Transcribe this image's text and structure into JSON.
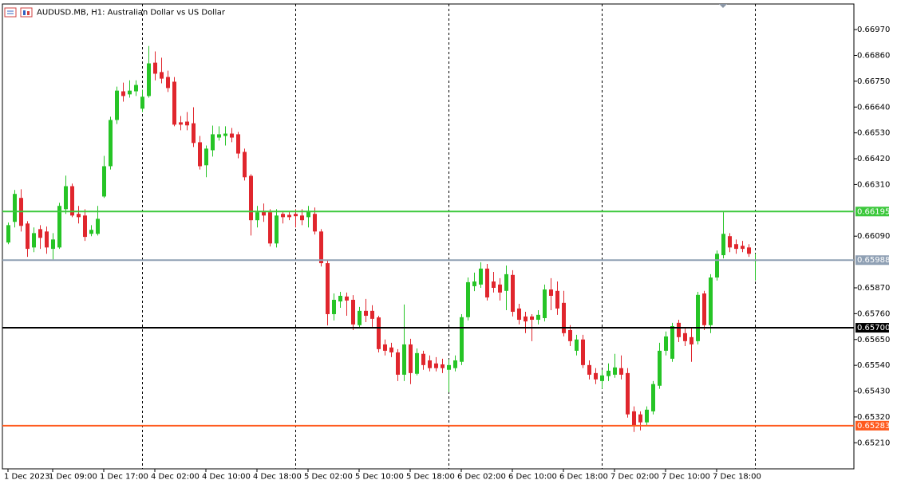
{
  "chart_data": {
    "type": "candlestick",
    "title": "AUDUSD.MB, H1:  Australian Dollar vs US Dollar",
    "categories": [
      "1 Dec 2023",
      null,
      null,
      null,
      null,
      null,
      null,
      "1 Dec 09:00",
      null,
      null,
      null,
      null,
      null,
      null,
      null,
      "1 Dec 17:00",
      null,
      null,
      null,
      null,
      null,
      null,
      null,
      "4 Dec 02:00",
      null,
      null,
      null,
      null,
      null,
      null,
      null,
      "4 Dec 10:00",
      null,
      null,
      null,
      null,
      null,
      null,
      null,
      "4 Dec 18:00",
      null,
      null,
      null,
      null,
      null,
      null,
      null,
      "5 Dec 02:00",
      null,
      null,
      null,
      null,
      null,
      null,
      null,
      "5 Dec 10:00",
      null,
      null,
      null,
      null,
      null,
      null,
      null,
      "5 Dec 18:00",
      null,
      null,
      null,
      null,
      null,
      null,
      null,
      "6 Dec 02:00",
      null,
      null,
      null,
      null,
      null,
      null,
      null,
      "6 Dec 10:00",
      null,
      null,
      null,
      null,
      null,
      null,
      null,
      "6 Dec 18:00",
      null,
      null,
      null,
      null,
      null,
      null,
      null,
      "7 Dec 02:00",
      null,
      null,
      null,
      null,
      null,
      null,
      null,
      "7 Dec 10:00",
      null,
      null,
      null,
      null,
      null,
      null,
      null,
      "7 Dec 18:00",
      null,
      null,
      null,
      null,
      null,
      null
    ],
    "open": [
      0.66063,
      0.66151,
      0.66253,
      0.66144,
      0.66042,
      0.6612,
      0.6611,
      0.66036,
      0.66042,
      0.66205,
      0.66303,
      0.66185,
      0.66178,
      0.661,
      0.661,
      0.66259,
      0.66388,
      0.66585,
      0.66707,
      0.66694,
      0.66707,
      0.66633,
      0.66687,
      0.66829,
      0.66789,
      0.66768,
      0.66748,
      0.66575,
      0.66578,
      0.66571,
      0.6649,
      0.66392,
      0.66456,
      0.6651,
      0.66517,
      0.66527,
      0.66524,
      0.66449,
      0.66347,
      0.66158,
      0.66198,
      0.66192,
      0.66059,
      0.66185,
      0.66181,
      0.66185,
      0.66178,
      0.66171,
      0.66185,
      0.6611,
      0.65975,
      0.65758,
      0.65812,
      0.65833,
      0.65819,
      0.65711,
      0.65772,
      0.65772,
      0.65744,
      0.65629,
      0.65616,
      0.65595,
      0.655,
      0.65629,
      0.65504,
      0.65589,
      0.65561,
      0.65548,
      0.65544,
      0.65521,
      0.65528,
      0.65555,
      0.65745,
      0.65877,
      0.65884,
      0.65952,
      0.65897,
      0.65884,
      0.65857,
      0.65925,
      0.65782,
      0.65748,
      0.65748,
      0.65734,
      0.65741,
      0.65863,
      0.65857,
      0.65806,
      0.6569,
      0.65602,
      0.6565,
      0.65541,
      0.65507,
      0.65473,
      0.65494,
      0.655,
      0.65528,
      0.65507,
      0.65344,
      0.65331,
      0.65297,
      0.65344,
      0.65453,
      0.65602,
      0.65568,
      0.65721,
      0.65677,
      0.6566,
      0.65643,
      0.65846,
      0.65711,
      0.65914,
      0.66009,
      0.6609,
      0.66056,
      0.66049,
      0.66042,
      0.65985
    ],
    "high": [
      0.66148,
      0.66287,
      0.6629,
      0.66154,
      0.66127,
      0.66137,
      0.66131,
      0.66103,
      0.66232,
      0.66348,
      0.66314,
      0.66219,
      0.66205,
      0.66137,
      0.66219,
      0.66432,
      0.66599,
      0.66727,
      0.66744,
      0.66754,
      0.66754,
      0.66714,
      0.669,
      0.66877,
      0.6685,
      0.66795,
      0.66768,
      0.66602,
      0.66619,
      0.66639,
      0.66517,
      0.66476,
      0.66561,
      0.66558,
      0.66558,
      0.66551,
      0.66534,
      0.66463,
      0.66354,
      0.66219,
      0.66229,
      0.66205,
      0.66205,
      0.66198,
      0.66195,
      0.66205,
      0.66205,
      0.66219,
      0.66212,
      0.6612,
      0.65988,
      0.65846,
      0.65853,
      0.6585,
      0.65839,
      0.65789,
      0.65823,
      0.65796,
      0.65751,
      0.6565,
      0.65636,
      0.65609,
      0.65799,
      0.65653,
      0.65612,
      0.65602,
      0.65582,
      0.65575,
      0.65568,
      0.65565,
      0.65582,
      0.65758,
      0.65914,
      0.65935,
      0.65979,
      0.65972,
      0.65938,
      0.65911,
      0.65965,
      0.65945,
      0.65802,
      0.65768,
      0.65758,
      0.65775,
      0.65884,
      0.65911,
      0.65897,
      0.65857,
      0.65711,
      0.6567,
      0.6567,
      0.65561,
      0.65528,
      0.65521,
      0.65548,
      0.65589,
      0.65582,
      0.65528,
      0.65365,
      0.65344,
      0.65365,
      0.65473,
      0.65636,
      0.65684,
      0.65721,
      0.65734,
      0.65697,
      0.65697,
      0.65853,
      0.65857,
      0.65928,
      0.66029,
      0.66192,
      0.66103,
      0.66076,
      0.6607,
      0.66056,
      0.66015
    ],
    "low": [
      0.66056,
      0.66127,
      0.6611,
      0.66002,
      0.66022,
      0.66036,
      0.66015,
      0.65991,
      0.66036,
      0.66185,
      0.66171,
      0.66144,
      0.6607,
      0.6609,
      0.66093,
      0.66253,
      0.66374,
      0.66568,
      0.66663,
      0.6668,
      0.66687,
      0.66619,
      0.6668,
      0.66754,
      0.66741,
      0.66704,
      0.66558,
      0.66541,
      0.66541,
      0.6647,
      0.66374,
      0.66341,
      0.66429,
      0.66497,
      0.66476,
      0.6649,
      0.66422,
      0.66327,
      0.66093,
      0.66127,
      0.66151,
      0.66046,
      0.66042,
      0.66144,
      0.66158,
      0.66127,
      0.66137,
      0.66127,
      0.66097,
      0.65961,
      0.6571,
      0.65731,
      0.65785,
      0.65751,
      0.6569,
      0.65697,
      0.65724,
      0.65704,
      0.65595,
      0.65582,
      0.65575,
      0.65473,
      0.65473,
      0.6546,
      0.65497,
      0.65521,
      0.65514,
      0.65514,
      0.65507,
      0.65426,
      0.65514,
      0.65541,
      0.65731,
      0.65856,
      0.6587,
      0.65816,
      0.6585,
      0.65816,
      0.65775,
      0.65748,
      0.65714,
      0.65677,
      0.65643,
      0.65714,
      0.65727,
      0.65775,
      0.65755,
      0.65663,
      0.65622,
      0.65582,
      0.65528,
      0.6548,
      0.6546,
      0.6544,
      0.65473,
      0.65487,
      0.6548,
      0.65317,
      0.65256,
      0.65263,
      0.65283,
      0.65331,
      0.6544,
      0.65582,
      0.65555,
      0.65639,
      0.65622,
      0.65555,
      0.65629,
      0.6569,
      0.65677,
      0.65901,
      0.65995,
      0.66022,
      0.66015,
      0.66022,
      0.66002,
      0.65901
    ],
    "close": [
      0.66137,
      0.6627,
      0.66134,
      0.66036,
      0.66103,
      0.66083,
      0.66042,
      0.66076,
      0.66219,
      0.66303,
      0.66178,
      0.66171,
      0.66087,
      0.66117,
      0.66164,
      0.66388,
      0.66585,
      0.6671,
      0.66687,
      0.6671,
      0.66734,
      0.66684,
      0.66826,
      0.66782,
      0.66761,
      0.66721,
      0.66565,
      0.66565,
      0.66562,
      0.66487,
      0.66388,
      0.66463,
      0.66524,
      0.66524,
      0.66527,
      0.6651,
      0.66442,
      0.66341,
      0.66158,
      0.66192,
      0.66178,
      0.66059,
      0.66178,
      0.66171,
      0.66171,
      0.66175,
      0.66158,
      0.66198,
      0.6611,
      0.65975,
      0.65758,
      0.65819,
      0.65836,
      0.65816,
      0.65714,
      0.65772,
      0.65751,
      0.65738,
      0.65609,
      0.65602,
      0.65595,
      0.655,
      0.65629,
      0.65507,
      0.65592,
      0.65541,
      0.65528,
      0.65528,
      0.65528,
      0.65541,
      0.65561,
      0.65745,
      0.65894,
      0.65897,
      0.65952,
      0.65829,
      0.6587,
      0.6585,
      0.65928,
      0.65768,
      0.65734,
      0.65727,
      0.65734,
      0.65755,
      0.65863,
      0.65836,
      0.65782,
      0.65677,
      0.65643,
      0.6565,
      0.65541,
      0.655,
      0.6548,
      0.65497,
      0.65517,
      0.65531,
      0.655,
      0.65331,
      0.65283,
      0.65297,
      0.65351,
      0.6546,
      0.65602,
      0.65663,
      0.65707,
      0.6566,
      0.65643,
      0.65629,
      0.6584,
      0.65711,
      0.65914,
      0.66015,
      0.661,
      0.66042,
      0.66036,
      0.66036,
      0.66015,
      0.65988
    ],
    "up_color": "#26c426",
    "down_color": "#e0262d",
    "ylim": [
      0.65099,
      0.67079
    ],
    "yticks": [
      {
        "value": 0.6697,
        "label": "0.66970"
      },
      {
        "value": 0.6686,
        "label": "0.66860"
      },
      {
        "value": 0.6675,
        "label": "0.66750"
      },
      {
        "value": 0.6664,
        "label": "0.66640"
      },
      {
        "value": 0.6653,
        "label": "0.66530"
      },
      {
        "value": 0.6642,
        "label": "0.66420"
      },
      {
        "value": 0.6631,
        "label": "0.66310"
      },
      {
        "value": 0.6609,
        "label": "0.66090"
      },
      {
        "value": 0.6587,
        "label": "0.65870"
      },
      {
        "value": 0.6576,
        "label": "0.65760"
      },
      {
        "value": 0.6565,
        "label": "0.65650"
      },
      {
        "value": 0.6554,
        "label": "0.65540"
      },
      {
        "value": 0.6543,
        "label": "0.65430"
      },
      {
        "value": 0.6532,
        "label": "0.65320"
      },
      {
        "value": 0.6521,
        "label": "0.65210"
      }
    ],
    "levels": [
      {
        "value": 0.66195,
        "color": "#3cc83c"
      },
      {
        "value": 0.65988,
        "color": "#8fa0b4"
      },
      {
        "value": 0.657,
        "label": "0.65700",
        "color": "#000000"
      },
      {
        "value": 0.65283,
        "color": "#ff5a1e"
      }
    ]
  }
}
